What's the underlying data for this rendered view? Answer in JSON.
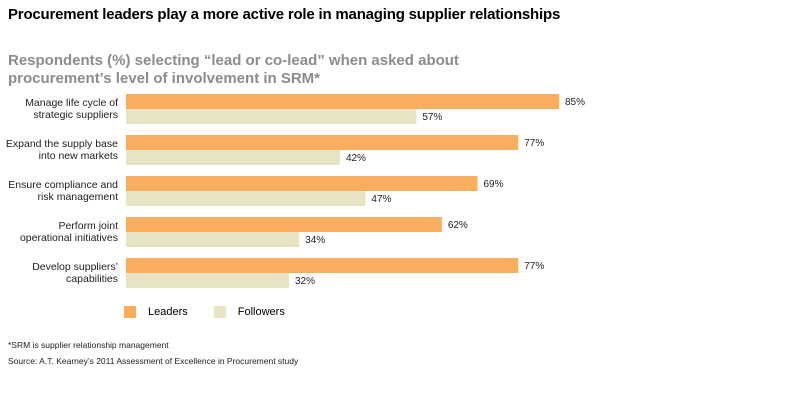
{
  "colors": {
    "leaders": "#f8ae5e",
    "followers": "#e7e3c4"
  },
  "chart_data": {
    "type": "bar",
    "orientation": "horizontal",
    "title": "Procurement leaders play a more active role in managing supplier relationships",
    "subtitle": "Respondents (%) selecting “lead or co-lead” when asked about procurement’s level of involvement in SRM*",
    "categories": [
      [
        "Manage life cycle of",
        "strategic suppliers"
      ],
      [
        "Expand the supply base",
        "into new markets"
      ],
      [
        "Ensure compliance and",
        "risk management"
      ],
      [
        "Perform joint",
        "operational initiatives"
      ],
      [
        "Develop suppliers’",
        "capabilities"
      ]
    ],
    "series": [
      {
        "name": "Leaders",
        "values": [
          85,
          77,
          69,
          62,
          77
        ]
      },
      {
        "name": "Followers",
        "values": [
          57,
          42,
          47,
          34,
          32
        ]
      }
    ],
    "value_suffix": "%",
    "xlim": [
      0,
      100
    ],
    "grid": false,
    "legend_position": "bottom-left"
  },
  "footnote": "*SRM is supplier relationship management",
  "source": "Source: A.T. Kearney’s 2011 Assessment of Excellence in Procurement study"
}
